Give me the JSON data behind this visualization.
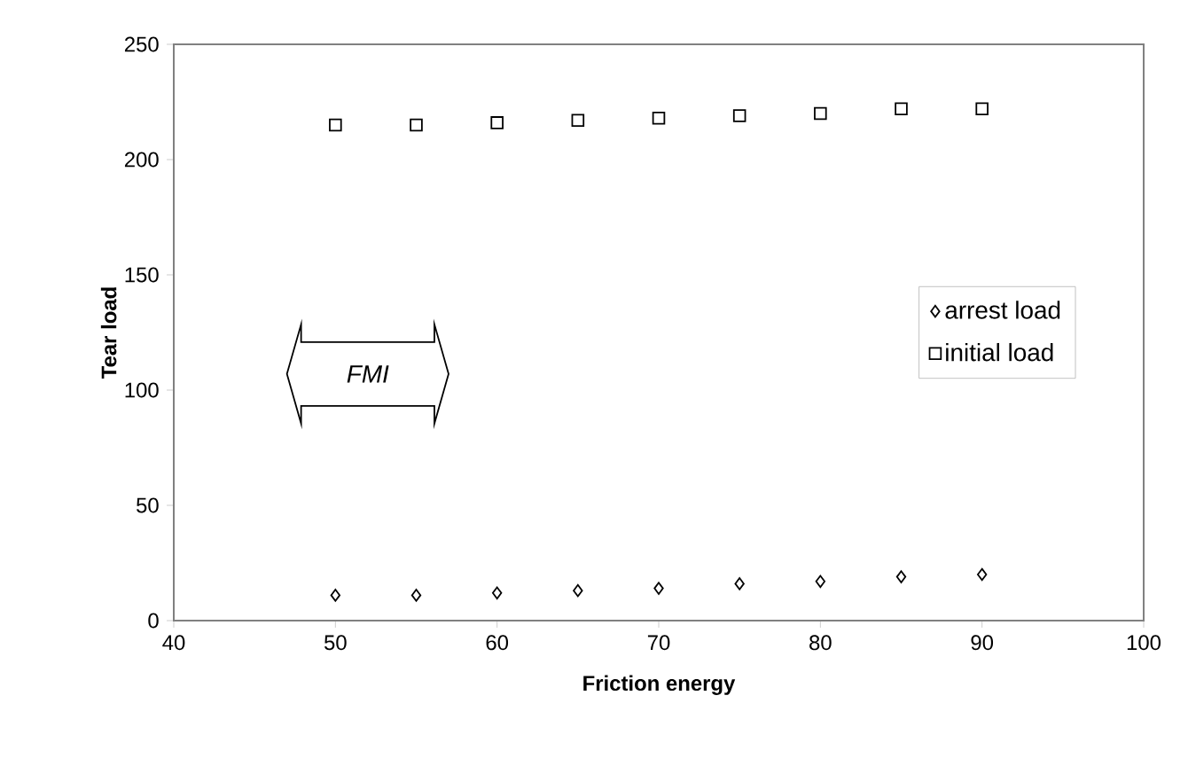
{
  "chart_data": {
    "type": "scatter",
    "xlabel": "Friction energy",
    "ylabel": "Tear load",
    "x": [
      50,
      55,
      60,
      65,
      70,
      75,
      80,
      85,
      90
    ],
    "series": [
      {
        "name": "arrest load",
        "color": "#000000",
        "marker": "diamond",
        "values": [
          11,
          11,
          12,
          13,
          14,
          16,
          17,
          19,
          20
        ]
      },
      {
        "name": "initial load",
        "color": "#000000",
        "marker": "square",
        "values": [
          215,
          215,
          216,
          217,
          218,
          219,
          220,
          222,
          222
        ]
      }
    ],
    "xlim": [
      40,
      100
    ],
    "xticks": [
      40,
      50,
      60,
      70,
      80,
      90,
      100
    ],
    "ylim": [
      0,
      250
    ],
    "yticks": [
      0,
      50,
      100,
      150,
      200,
      250
    ],
    "grid": false,
    "legend": "right",
    "annotations": [
      "FMI"
    ]
  }
}
